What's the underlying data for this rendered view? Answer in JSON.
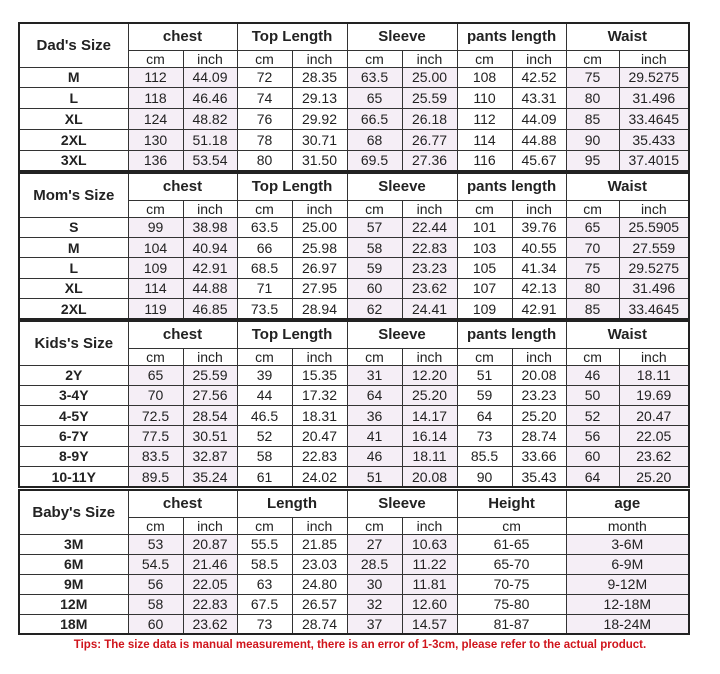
{
  "colors": {
    "shade": "#f5eef6",
    "tips": "#d0151c",
    "border": "#222222"
  },
  "tables": [
    {
      "title": "Dad's Size",
      "groups": [
        "chest",
        "Top Length",
        "Sleeve",
        "pants length",
        "Waist"
      ],
      "subs": [
        "cm",
        "inch",
        "cm",
        "inch",
        "cm",
        "inch",
        "cm",
        "inch",
        "cm",
        "inch"
      ],
      "rows": [
        [
          "M",
          "112",
          "44.09",
          "72",
          "28.35",
          "63.5",
          "25.00",
          "108",
          "42.52",
          "75",
          "29.5275"
        ],
        [
          "L",
          "118",
          "46.46",
          "74",
          "29.13",
          "65",
          "25.59",
          "110",
          "43.31",
          "80",
          "31.496"
        ],
        [
          "XL",
          "124",
          "48.82",
          "76",
          "29.92",
          "66.5",
          "26.18",
          "112",
          "44.09",
          "85",
          "33.4645"
        ],
        [
          "2XL",
          "130",
          "51.18",
          "78",
          "30.71",
          "68",
          "26.77",
          "114",
          "44.88",
          "90",
          "35.433"
        ],
        [
          "3XL",
          "136",
          "53.54",
          "80",
          "31.50",
          "69.5",
          "27.36",
          "116",
          "45.67",
          "95",
          "37.4015"
        ]
      ]
    },
    {
      "title": "Mom's Size",
      "groups": [
        "chest",
        "Top Length",
        "Sleeve",
        "pants length",
        "Waist"
      ],
      "subs": [
        "cm",
        "inch",
        "cm",
        "inch",
        "cm",
        "inch",
        "cm",
        "inch",
        "cm",
        "inch"
      ],
      "rows": [
        [
          "S",
          "99",
          "38.98",
          "63.5",
          "25.00",
          "57",
          "22.44",
          "101",
          "39.76",
          "65",
          "25.5905"
        ],
        [
          "M",
          "104",
          "40.94",
          "66",
          "25.98",
          "58",
          "22.83",
          "103",
          "40.55",
          "70",
          "27.559"
        ],
        [
          "L",
          "109",
          "42.91",
          "68.5",
          "26.97",
          "59",
          "23.23",
          "105",
          "41.34",
          "75",
          "29.5275"
        ],
        [
          "XL",
          "114",
          "44.88",
          "71",
          "27.95",
          "60",
          "23.62",
          "107",
          "42.13",
          "80",
          "31.496"
        ],
        [
          "2XL",
          "119",
          "46.85",
          "73.5",
          "28.94",
          "62",
          "24.41",
          "109",
          "42.91",
          "85",
          "33.4645"
        ]
      ]
    },
    {
      "title": "Kids's Size",
      "groups": [
        "chest",
        "Top Length",
        "Sleeve",
        "pants length",
        "Waist"
      ],
      "subs": [
        "cm",
        "inch",
        "cm",
        "inch",
        "cm",
        "inch",
        "cm",
        "inch",
        "cm",
        "inch"
      ],
      "rows": [
        [
          "2Y",
          "65",
          "25.59",
          "39",
          "15.35",
          "31",
          "12.20",
          "51",
          "20.08",
          "46",
          "18.11"
        ],
        [
          "3-4Y",
          "70",
          "27.56",
          "44",
          "17.32",
          "64",
          "25.20",
          "59",
          "23.23",
          "50",
          "19.69"
        ],
        [
          "4-5Y",
          "72.5",
          "28.54",
          "46.5",
          "18.31",
          "36",
          "14.17",
          "64",
          "25.20",
          "52",
          "20.47"
        ],
        [
          "6-7Y",
          "77.5",
          "30.51",
          "52",
          "20.47",
          "41",
          "16.14",
          "73",
          "28.74",
          "56",
          "22.05"
        ],
        [
          "8-9Y",
          "83.5",
          "32.87",
          "58",
          "22.83",
          "46",
          "18.11",
          "85.5",
          "33.66",
          "60",
          "23.62"
        ],
        [
          "10-11Y",
          "89.5",
          "35.24",
          "61",
          "24.02",
          "51",
          "20.08",
          "90",
          "35.43",
          "64",
          "25.20"
        ]
      ]
    },
    {
      "title": "Baby's Size",
      "groups": [
        "chest",
        "Length",
        "Sleeve",
        "Height",
        "age"
      ],
      "subs": [
        "cm",
        "inch",
        "cm",
        "inch",
        "cm",
        "inch",
        "cm",
        "month"
      ],
      "rows": [
        [
          "3M",
          "53",
          "20.87",
          "55.5",
          "21.85",
          "27",
          "10.63",
          "61-65",
          "3-6M"
        ],
        [
          "6M",
          "54.5",
          "21.46",
          "58.5",
          "23.03",
          "28.5",
          "11.22",
          "65-70",
          "6-9M"
        ],
        [
          "9M",
          "56",
          "22.05",
          "63",
          "24.80",
          "30",
          "11.81",
          "70-75",
          "9-12M"
        ],
        [
          "12M",
          "58",
          "22.83",
          "67.5",
          "26.57",
          "32",
          "12.60",
          "75-80",
          "12-18M"
        ],
        [
          "18M",
          "60",
          "23.62",
          "73",
          "28.74",
          "37",
          "14.57",
          "81-87",
          "18-24M"
        ]
      ]
    }
  ],
  "tips": "Tips: The size data is manual measurement, there is an error of 1-3cm, please refer to the actual product."
}
